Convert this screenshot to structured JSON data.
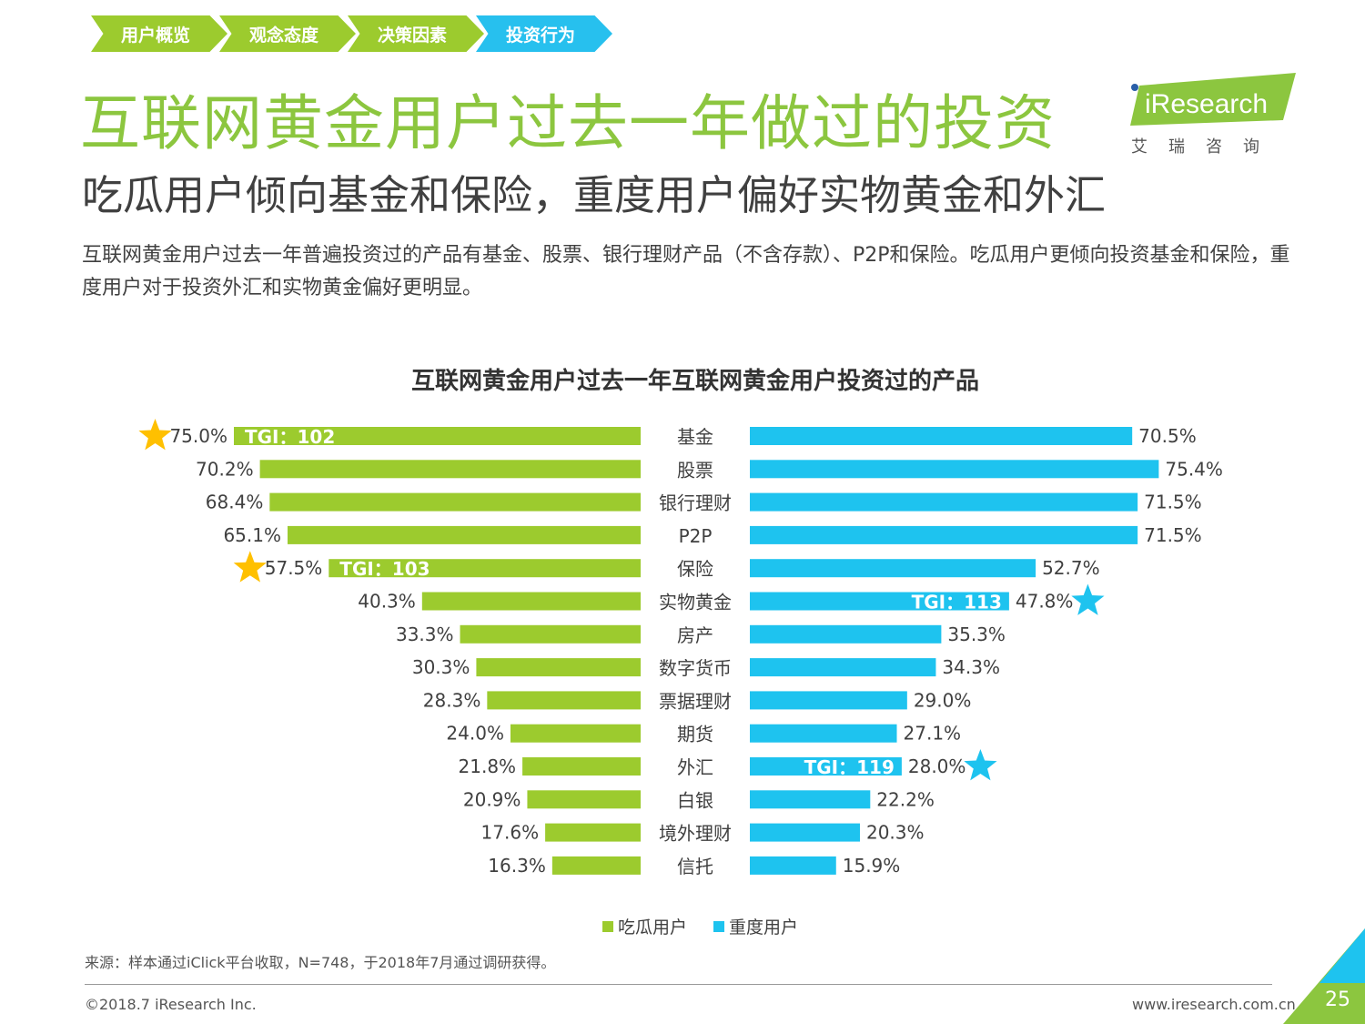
{
  "nav": {
    "items": [
      {
        "label": "用户概览",
        "active": false
      },
      {
        "label": "观念态度",
        "active": false
      },
      {
        "label": "决策因素",
        "active": false
      },
      {
        "label": "投资行为",
        "active": true
      }
    ]
  },
  "header": {
    "title": "互联网黄金用户过去一年做过的投资",
    "subtitle": "吃瓜用户倾向基金和保险，重度用户偏好实物黄金和外汇",
    "description": "互联网黄金用户过去一年普遍投资过的产品有基金、股票、银行理财产品（不含存款）、P2P和保险。吃瓜用户更倾向投资基金和保险，重度用户对于投资外汇和实物黄金偏好更明显。"
  },
  "logo": {
    "text": "iResearch",
    "sub": "艾瑞咨询"
  },
  "colors": {
    "green": "#9ccb2e",
    "blue": "#1ec3ef",
    "title_green": "#8cc63f",
    "star_yellow": "#ffc000"
  },
  "chart_data": {
    "type": "bar",
    "title": "互联网黄金用户过去一年互联网黄金用户投资过的产品",
    "categories": [
      "基金",
      "股票",
      "银行理财",
      "P2P",
      "保险",
      "实物黄金",
      "房产",
      "数字货币",
      "票据理财",
      "期货",
      "外汇",
      "白银",
      "境外理财",
      "信托"
    ],
    "series": [
      {
        "name": "吃瓜用户",
        "color": "#9ccb2e",
        "values": [
          75.0,
          70.2,
          68.4,
          65.1,
          57.5,
          40.3,
          33.3,
          30.3,
          28.3,
          24.0,
          21.8,
          20.9,
          17.6,
          16.3
        ]
      },
      {
        "name": "重度用户",
        "color": "#1ec3ef",
        "values": [
          70.5,
          75.4,
          71.5,
          71.5,
          52.7,
          47.8,
          35.3,
          34.3,
          29.0,
          27.1,
          28.0,
          22.2,
          20.3,
          15.9
        ]
      }
    ],
    "value_format": "%",
    "tgi": [
      {
        "series": "吃瓜用户",
        "category": "基金",
        "label": "TGI：102"
      },
      {
        "series": "吃瓜用户",
        "category": "保险",
        "label": "TGI：103"
      },
      {
        "series": "重度用户",
        "category": "实物黄金",
        "label": "TGI：113"
      },
      {
        "series": "重度用户",
        "category": "外汇",
        "label": "TGI：119"
      }
    ],
    "legend": {
      "position": "bottom"
    }
  },
  "footer": {
    "source": "来源：样本通过iClick平台收取，N=748，于2018年7月通过调研获得。",
    "copyright": "©2018.7 iResearch Inc.",
    "website": "www.iresearch.com.cn",
    "page": "25"
  }
}
